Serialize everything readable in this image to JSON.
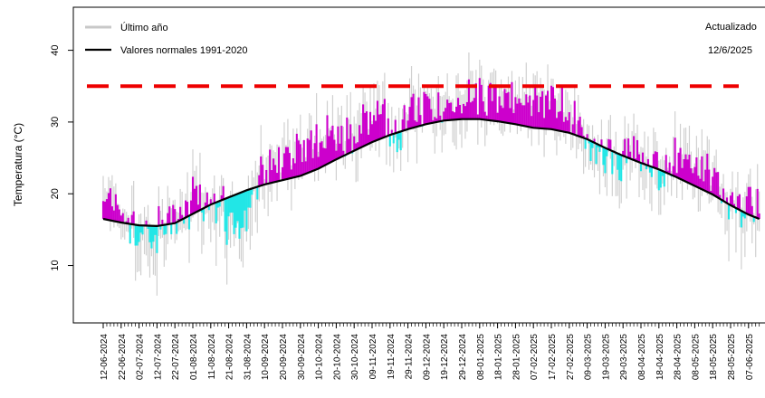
{
  "chart_data": {
    "type": "line",
    "ylabel": "Temperatura (°C)",
    "xlabel": "",
    "ylim": [
      2,
      46
    ],
    "y_ticks": [
      10,
      20,
      30,
      40
    ],
    "x_tick_labels": [
      "12-06-2024",
      "22-06-2024",
      "02-07-2024",
      "12-07-2024",
      "22-07-2024",
      "01-08-2024",
      "11-08-2024",
      "21-08-2024",
      "31-08-2024",
      "10-09-2024",
      "20-09-2024",
      "30-09-2024",
      "10-10-2024",
      "20-10-2024",
      "30-10-2024",
      "09-11-2024",
      "19-11-2024",
      "29-11-2024",
      "09-12-2024",
      "19-12-2024",
      "29-12-2024",
      "08-01-2025",
      "18-01-2025",
      "28-01-2025",
      "07-02-2025",
      "17-02-2025",
      "27-02-2025",
      "09-03-2025",
      "19-03-2025",
      "29-03-2025",
      "08-04-2025",
      "18-04-2025",
      "28-04-2025",
      "08-05-2025",
      "18-05-2025",
      "28-05-2025",
      "07-06-2025"
    ],
    "reference_line": {
      "y": 35,
      "color": "#ee0000",
      "style": "dashed"
    },
    "series": [
      {
        "name": "Último año",
        "color": "#c8c8c8",
        "daily_max_samples": [
          {
            "date": "12-06-2024",
            "value": 21
          },
          {
            "date": "02-07-2024",
            "value": 18
          },
          {
            "date": "12-07-2024",
            "value": 14
          },
          {
            "date": "01-08-2024",
            "value": 24
          },
          {
            "date": "21-08-2024",
            "value": 16
          },
          {
            "date": "10-09-2024",
            "value": 25
          },
          {
            "date": "30-09-2024",
            "value": 33
          },
          {
            "date": "20-10-2024",
            "value": 30
          },
          {
            "date": "09-11-2024",
            "value": 35
          },
          {
            "date": "29-11-2024",
            "value": 33
          },
          {
            "date": "19-12-2024",
            "value": 33
          },
          {
            "date": "08-01-2025",
            "value": 37
          },
          {
            "date": "28-01-2025",
            "value": 36
          },
          {
            "date": "17-02-2025",
            "value": 38
          },
          {
            "date": "09-03-2025",
            "value": 31
          },
          {
            "date": "29-03-2025",
            "value": 27
          },
          {
            "date": "18-04-2025",
            "value": 25
          },
          {
            "date": "08-05-2025",
            "value": 27
          },
          {
            "date": "28-05-2025",
            "value": 21
          },
          {
            "date": "07-06-2025",
            "value": 22
          }
        ]
      },
      {
        "name": "Valores normales 1991-2020",
        "color": "#000000",
        "x_day": [
          0,
          10,
          20,
          30,
          40,
          50,
          60,
          70,
          80,
          90,
          100,
          110,
          120,
          130,
          140,
          150,
          160,
          170,
          180,
          190,
          200,
          210,
          220,
          230,
          240,
          250,
          260,
          270,
          280,
          290,
          300,
          310,
          320,
          330,
          340,
          350,
          360,
          366
        ],
        "values": [
          16.5,
          16.0,
          15.6,
          15.5,
          15.9,
          17.2,
          18.5,
          19.5,
          20.5,
          21.3,
          21.9,
          22.5,
          23.5,
          24.8,
          26.0,
          27.2,
          28.2,
          29.0,
          29.7,
          30.2,
          30.4,
          30.4,
          30.1,
          29.7,
          29.2,
          29.0,
          28.5,
          27.6,
          26.4,
          25.3,
          24.3,
          23.4,
          22.3,
          21.1,
          19.9,
          18.4,
          17.1,
          16.5
        ]
      }
    ],
    "fill_colors": {
      "above_normal": "#cc00cc",
      "below_normal": "#22e6e6"
    },
    "legend": {
      "position": "top-left",
      "entries": [
        {
          "label": "Último año",
          "color": "#c8c8c8"
        },
        {
          "label": "Valores normales 1991-2020",
          "color": "#000000"
        }
      ]
    },
    "annotations": [
      "Actualizado",
      "12/6/2025"
    ],
    "grid": false
  }
}
